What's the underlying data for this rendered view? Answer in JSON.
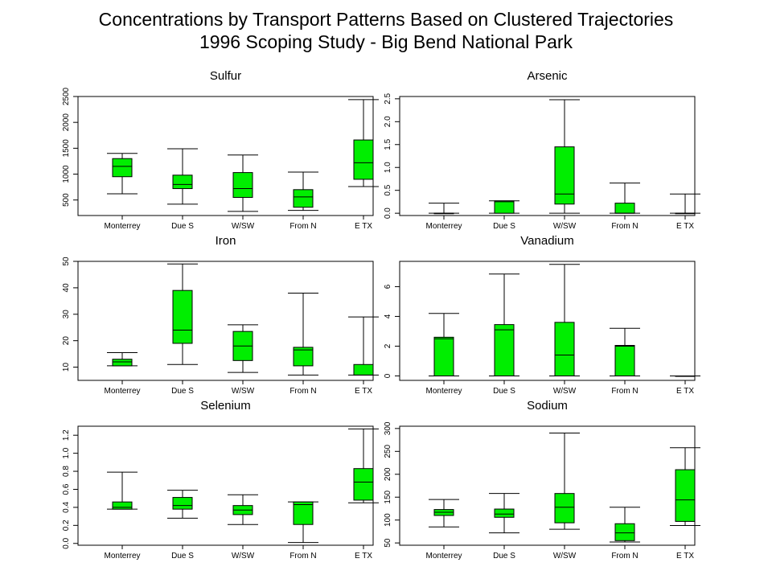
{
  "page": {
    "title_line1": "Concentrations by Transport Patterns Based on Clustered Trajectories",
    "title_line2": "1996 Scoping Study - Big Bend National Park"
  },
  "colors": {
    "box_fill": "#00ee00",
    "stroke": "#000000",
    "background": "#ffffff"
  },
  "chart_data": [
    {
      "type": "boxplot",
      "title": "Sulfur",
      "categories": [
        "Monterrey",
        "Due S",
        "W/SW",
        "From N",
        "E TX"
      ],
      "ylim": [
        200,
        2500
      ],
      "yticks": [
        500,
        1000,
        1500,
        2000,
        2500
      ],
      "ytick_labels": [
        "500",
        "1000",
        "1500",
        "2000",
        "2500"
      ],
      "boxes": [
        {
          "whisker_low": 620,
          "q1": 950,
          "median": 1150,
          "q3": 1300,
          "whisker_high": 1400
        },
        {
          "whisker_low": 420,
          "q1": 720,
          "median": 800,
          "q3": 980,
          "whisker_high": 1490
        },
        {
          "whisker_low": 280,
          "q1": 550,
          "median": 720,
          "q3": 1030,
          "whisker_high": 1370
        },
        {
          "whisker_low": 300,
          "q1": 360,
          "median": 560,
          "q3": 700,
          "whisker_high": 1040
        },
        {
          "whisker_low": 760,
          "q1": 900,
          "median": 1220,
          "q3": 1660,
          "whisker_high": 2440
        }
      ]
    },
    {
      "type": "boxplot",
      "title": "Arsenic",
      "categories": [
        "Monterrey",
        "Due S",
        "W/SW",
        "From N",
        "E TX"
      ],
      "ylim": [
        -0.05,
        2.55
      ],
      "yticks": [
        0.0,
        0.5,
        1.0,
        1.5,
        2.0,
        2.5
      ],
      "ytick_labels": [
        "0.0",
        "0.5",
        "1.0",
        "1.5",
        "2.0",
        "2.5"
      ],
      "boxes": [
        {
          "whisker_low": 0.0,
          "q1": 0.0,
          "median": 0.0,
          "q3": 0.0,
          "whisker_high": 0.22
        },
        {
          "whisker_low": 0.0,
          "q1": 0.0,
          "median": 0.25,
          "q3": 0.27,
          "whisker_high": 0.27
        },
        {
          "whisker_low": 0.0,
          "q1": 0.2,
          "median": 0.42,
          "q3": 1.45,
          "whisker_high": 2.48
        },
        {
          "whisker_low": 0.0,
          "q1": 0.0,
          "median": 0.0,
          "q3": 0.22,
          "whisker_high": 0.66
        },
        {
          "whisker_low": 0.0,
          "q1": 0.0,
          "median": 0.0,
          "q3": 0.0,
          "whisker_high": 0.42
        }
      ]
    },
    {
      "type": "boxplot",
      "title": "Iron",
      "categories": [
        "Monterrey",
        "Due S",
        "W/SW",
        "From N",
        "E TX"
      ],
      "ylim": [
        5,
        50
      ],
      "yticks": [
        10,
        20,
        30,
        40,
        50
      ],
      "ytick_labels": [
        "10",
        "20",
        "30",
        "40",
        "50"
      ],
      "boxes": [
        {
          "whisker_low": 10.5,
          "q1": 10.5,
          "median": 12,
          "q3": 13,
          "whisker_high": 15.5
        },
        {
          "whisker_low": 11,
          "q1": 19,
          "median": 24,
          "q3": 39,
          "whisker_high": 49
        },
        {
          "whisker_low": 8,
          "q1": 12.5,
          "median": 18,
          "q3": 23.5,
          "whisker_high": 26
        },
        {
          "whisker_low": 7,
          "q1": 10.5,
          "median": 16.5,
          "q3": 17.5,
          "whisker_high": 38
        },
        {
          "whisker_low": 7,
          "q1": 7,
          "median": 7,
          "q3": 11,
          "whisker_high": 29
        }
      ]
    },
    {
      "type": "boxplot",
      "title": "Vanadium",
      "categories": [
        "Monterrey",
        "Due S",
        "W/SW",
        "From N",
        "E TX"
      ],
      "ylim": [
        -0.3,
        7.7
      ],
      "yticks": [
        0,
        2,
        4,
        6
      ],
      "ytick_labels": [
        "0",
        "2",
        "4",
        "6"
      ],
      "boxes": [
        {
          "whisker_low": 0,
          "q1": 0,
          "median": 2.5,
          "q3": 2.6,
          "whisker_high": 4.2
        },
        {
          "whisker_low": 0,
          "q1": 0,
          "median": 3.1,
          "q3": 3.45,
          "whisker_high": 6.85
        },
        {
          "whisker_low": 0,
          "q1": 0,
          "median": 1.4,
          "q3": 3.6,
          "whisker_high": 7.5
        },
        {
          "whisker_low": 0,
          "q1": 0,
          "median": 2.0,
          "q3": 2.05,
          "whisker_high": 3.2
        },
        {
          "whisker_low": 0,
          "q1": 0,
          "median": 0,
          "q3": 0,
          "whisker_high": 0
        }
      ]
    },
    {
      "type": "boxplot",
      "title": "Selenium",
      "categories": [
        "Monterrey",
        "Due S",
        "W/SW",
        "From N",
        "E TX"
      ],
      "ylim": [
        -0.02,
        1.3
      ],
      "yticks": [
        0.0,
        0.2,
        0.4,
        0.6,
        0.8,
        1.0,
        1.2
      ],
      "ytick_labels": [
        "0.0",
        "0.2",
        "0.4",
        "0.6",
        "0.8",
        "1.0",
        "1.2"
      ],
      "boxes": [
        {
          "whisker_low": 0.38,
          "q1": 0.38,
          "median": 0.4,
          "q3": 0.46,
          "whisker_high": 0.79
        },
        {
          "whisker_low": 0.28,
          "q1": 0.38,
          "median": 0.42,
          "q3": 0.51,
          "whisker_high": 0.59
        },
        {
          "whisker_low": 0.21,
          "q1": 0.32,
          "median": 0.37,
          "q3": 0.42,
          "whisker_high": 0.54
        },
        {
          "whisker_low": 0.01,
          "q1": 0.21,
          "median": 0.43,
          "q3": 0.46,
          "whisker_high": 0.46
        },
        {
          "whisker_low": 0.45,
          "q1": 0.48,
          "median": 0.68,
          "q3": 0.83,
          "whisker_high": 1.27
        }
      ]
    },
    {
      "type": "boxplot",
      "title": "Sodium",
      "categories": [
        "Monterrey",
        "Due S",
        "W/SW",
        "From N",
        "E TX"
      ],
      "ylim": [
        45,
        305
      ],
      "yticks": [
        50,
        100,
        150,
        200,
        250,
        300
      ],
      "ytick_labels": [
        "50",
        "100",
        "150",
        "200",
        "250",
        "300"
      ],
      "boxes": [
        {
          "whisker_low": 85,
          "q1": 110,
          "median": 117,
          "q3": 123,
          "whisker_high": 145
        },
        {
          "whisker_low": 72,
          "q1": 106,
          "median": 113,
          "q3": 124,
          "whisker_high": 158
        },
        {
          "whisker_low": 80,
          "q1": 94,
          "median": 128,
          "q3": 158,
          "whisker_high": 290
        },
        {
          "whisker_low": 52,
          "q1": 55,
          "median": 72,
          "q3": 92,
          "whisker_high": 128
        },
        {
          "whisker_low": 88,
          "q1": 97,
          "median": 144,
          "q3": 210,
          "whisker_high": 258
        }
      ]
    }
  ]
}
